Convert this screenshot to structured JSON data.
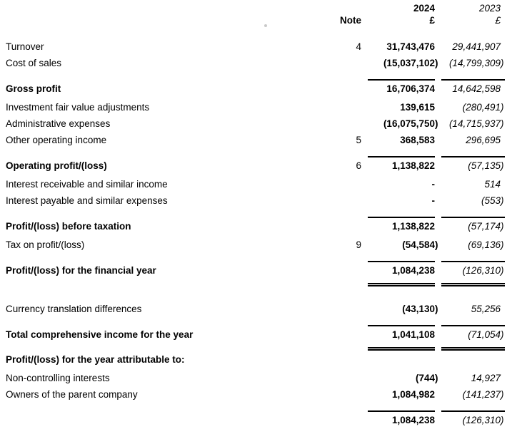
{
  "header": {
    "note_label": "Note",
    "col_current": {
      "year": "2024",
      "currency": "£"
    },
    "col_prior": {
      "year": "2023",
      "currency": "£"
    }
  },
  "rows": [
    {
      "label": "Turnover",
      "note": "4",
      "current": "31,743,476",
      "prior": "29,441,907",
      "kind": "item"
    },
    {
      "label": "Cost of sales",
      "note": "",
      "current": "(15,037,102)",
      "prior": "(14,799,309)",
      "kind": "item"
    },
    {
      "label": "Gross profit",
      "note": "",
      "current": "16,706,374",
      "prior": "14,642,598",
      "kind": "total",
      "rule_above": true
    },
    {
      "label": "Investment fair value adjustments",
      "note": "",
      "current": "139,615",
      "prior": "(280,491)",
      "kind": "item",
      "gap": "sm"
    },
    {
      "label": "Administrative expenses",
      "note": "",
      "current": "(16,075,750)",
      "prior": "(14,715,937)",
      "kind": "item"
    },
    {
      "label": "Other operating income",
      "note": "5",
      "current": "368,583",
      "prior": "296,695",
      "kind": "item"
    },
    {
      "label": "Operating profit/(loss)",
      "note": "6",
      "current": "1,138,822",
      "prior": "(57,135)",
      "kind": "total",
      "rule_above": true
    },
    {
      "label": "Interest receivable and similar income",
      "note": "",
      "current": "-",
      "prior": "514",
      "kind": "item",
      "gap": "sm"
    },
    {
      "label": "Interest payable and similar expenses",
      "note": "",
      "current": "-",
      "prior": "(553)",
      "kind": "item"
    },
    {
      "label": "Profit/(loss) before taxation",
      "note": "",
      "current": "1,138,822",
      "prior": "(57,174)",
      "kind": "total",
      "rule_above": true
    },
    {
      "label": "Tax on profit/(loss)",
      "note": "9",
      "current": "(54,584)",
      "prior": "(69,136)",
      "kind": "item",
      "gap": "sm"
    },
    {
      "label": "Profit/(loss) for the financial year",
      "note": "",
      "current": "1,084,238",
      "prior": "(126,310)",
      "kind": "total",
      "rule_above": true,
      "double_rule_below": true
    },
    {
      "label": "Currency translation differences",
      "note": "",
      "current": "(43,130)",
      "prior": "55,256",
      "kind": "item",
      "gap": "lg"
    },
    {
      "label": "Total comprehensive income for the year",
      "note": "",
      "current": "1,041,108",
      "prior": "(71,054)",
      "kind": "total",
      "rule_above": true,
      "double_rule_below": true
    },
    {
      "label": "Profit/(loss) for the year attributable to:",
      "note": "",
      "current": "",
      "prior": "",
      "kind": "heading"
    },
    {
      "label": "Non-controlling interests",
      "note": "",
      "current": "(744)",
      "prior": "14,927",
      "kind": "item",
      "gap": "sm"
    },
    {
      "label": "Owners of the parent company",
      "note": "",
      "current": "1,084,982",
      "prior": "(141,237)",
      "kind": "item"
    },
    {
      "label": "",
      "note": "",
      "current": "1,084,238",
      "prior": "(126,310)",
      "kind": "total",
      "rule_above": true
    }
  ]
}
